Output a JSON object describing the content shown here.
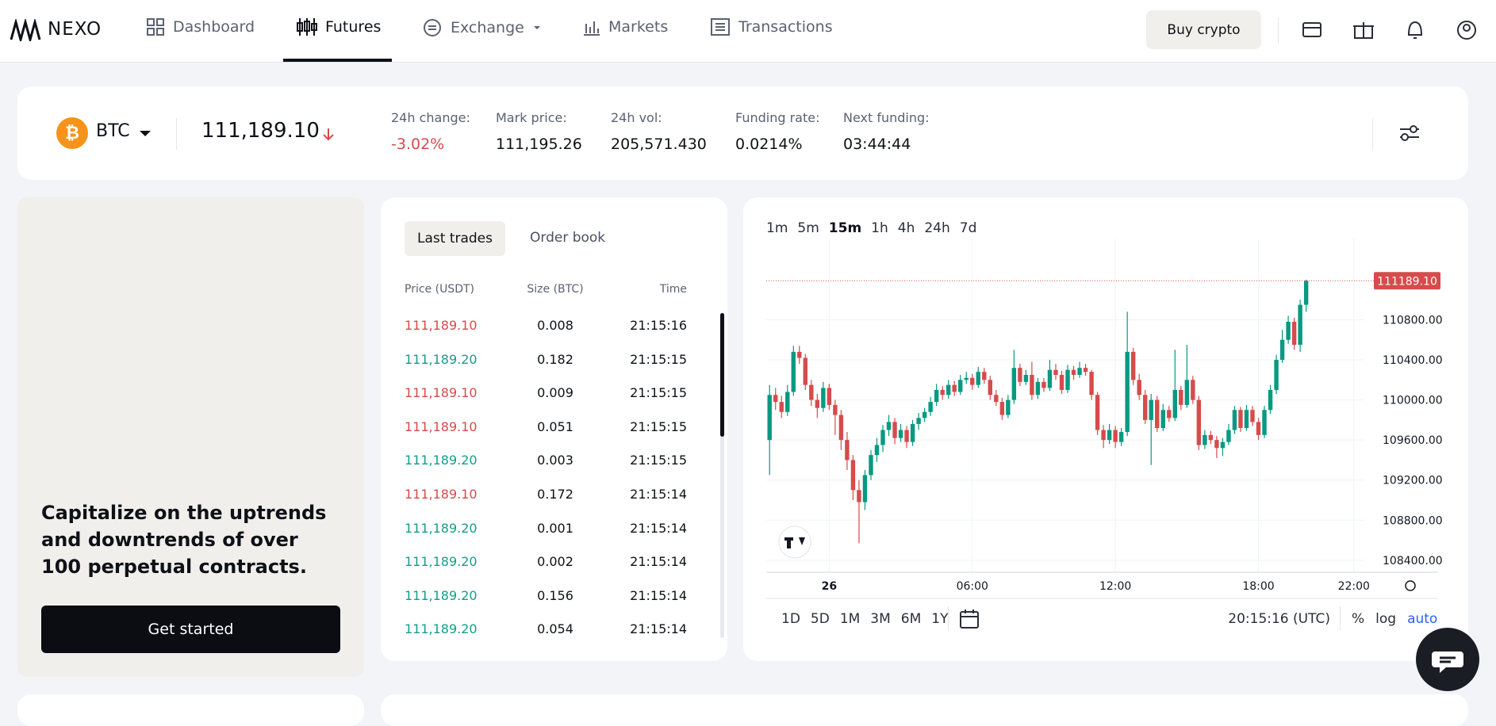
{
  "nav": {
    "brand": "NEXO",
    "items": [
      "Dashboard",
      "Futures",
      "Exchange",
      "Markets",
      "Transactions"
    ],
    "active": 1,
    "buy": "Buy crypto"
  },
  "ticker": {
    "symbol": "BTC",
    "price": "111,189.10",
    "stats": [
      {
        "label": "24h change:",
        "value": "-3.02%",
        "color": "#d64b4b"
      },
      {
        "label": "Mark price:",
        "value": "111,195.26"
      },
      {
        "label": "24h vol:",
        "value": "205,571.430"
      },
      {
        "label": "Funding rate:",
        "value": "0.0214%"
      },
      {
        "label": "Next funding:",
        "value": "03:44:44"
      }
    ]
  },
  "promo": {
    "text": "Capitalize on the uptrends and downtrends of over 100 perpetual contracts.",
    "button": "Get started"
  },
  "trades": {
    "tabs": [
      "Last trades",
      "Order book"
    ],
    "active": 0,
    "headers": [
      "Price (USDT)",
      "Size (BTC)",
      "Time"
    ],
    "rows": [
      {
        "price": "111,189.10",
        "size": "0.008",
        "time": "21:15:16",
        "color": "#d64b4b"
      },
      {
        "price": "111,189.20",
        "size": "0.182",
        "time": "21:15:15",
        "color": "#119e8c"
      },
      {
        "price": "111,189.10",
        "size": "0.009",
        "time": "21:15:15",
        "color": "#d64b4b"
      },
      {
        "price": "111,189.10",
        "size": "0.051",
        "time": "21:15:15",
        "color": "#d64b4b"
      },
      {
        "price": "111,189.20",
        "size": "0.003",
        "time": "21:15:15",
        "color": "#119e8c"
      },
      {
        "price": "111,189.10",
        "size": "0.172",
        "time": "21:15:14",
        "color": "#d64b4b"
      },
      {
        "price": "111,189.20",
        "size": "0.001",
        "time": "21:15:14",
        "color": "#119e8c"
      },
      {
        "price": "111,189.20",
        "size": "0.002",
        "time": "21:15:14",
        "color": "#119e8c"
      },
      {
        "price": "111,189.20",
        "size": "0.156",
        "time": "21:15:14",
        "color": "#119e8c"
      },
      {
        "price": "111,189.20",
        "size": "0.054",
        "time": "21:15:14",
        "color": "#119e8c"
      }
    ]
  },
  "chart_data": {
    "type": "candlestick",
    "intervals": [
      "1m",
      "5m",
      "15m",
      "1h",
      "4h",
      "24h",
      "7d"
    ],
    "active_interval": 2,
    "ranges": [
      "1D",
      "5D",
      "1M",
      "3M",
      "6M",
      "1Y"
    ],
    "clock": "20:15:16 (UTC)",
    "scale_options": [
      "%",
      "log",
      "auto"
    ],
    "up_color": "#089981",
    "down_color": "#d64b4b",
    "xlim": [
      -2.64,
      22.44
    ],
    "xticks": [
      {
        "value": 0,
        "label": "26"
      },
      {
        "value": 6,
        "label": "06:00"
      },
      {
        "value": 12,
        "label": "12:00"
      },
      {
        "value": 18,
        "label": "18:00"
      },
      {
        "value": 22,
        "label": "22:00"
      }
    ],
    "ylim": [
      108280,
      111500
    ],
    "yticks": [
      {
        "value": 108400,
        "label": "108400.00"
      },
      {
        "value": 108800,
        "label": "108800.00"
      },
      {
        "value": 109200,
        "label": "109200.00"
      },
      {
        "value": 109600,
        "label": "109600.00"
      },
      {
        "value": 110000,
        "label": "110000.00"
      },
      {
        "value": 110400,
        "label": "110400.00"
      },
      {
        "value": 110800,
        "label": "110800.00"
      }
    ],
    "last_price": {
      "value": 111189.1,
      "label": "111189.10"
    },
    "candles": [
      [
        -2.5,
        109600,
        110150,
        109250,
        110050
      ],
      [
        -2.25,
        110050,
        110120,
        109900,
        109980
      ],
      [
        -2,
        109980,
        110040,
        109820,
        109880
      ],
      [
        -1.75,
        109880,
        110150,
        109840,
        110080
      ],
      [
        -1.5,
        110080,
        110540,
        110040,
        110480
      ],
      [
        -1.25,
        110480,
        110540,
        110360,
        110420
      ],
      [
        -1,
        110420,
        110460,
        110100,
        110150
      ],
      [
        -0.75,
        110150,
        110200,
        109940,
        110000
      ],
      [
        -0.5,
        110000,
        110060,
        109820,
        109920
      ],
      [
        -0.25,
        109920,
        110180,
        109880,
        110120
      ],
      [
        0,
        110120,
        110160,
        109900,
        109950
      ],
      [
        0.25,
        109950,
        110000,
        109650,
        109850
      ],
      [
        0.5,
        109850,
        109900,
        109500,
        109600
      ],
      [
        0.75,
        109600,
        109680,
        109300,
        109400
      ],
      [
        1,
        109400,
        109450,
        109000,
        109100
      ],
      [
        1.25,
        109100,
        109200,
        108570,
        108980
      ],
      [
        1.5,
        108980,
        109300,
        108900,
        109250
      ],
      [
        1.75,
        109250,
        109500,
        109200,
        109450
      ],
      [
        2,
        109450,
        109620,
        109380,
        109550
      ],
      [
        2.25,
        109550,
        109750,
        109480,
        109700
      ],
      [
        2.5,
        109700,
        109850,
        109640,
        109780
      ],
      [
        2.75,
        109780,
        109820,
        109560,
        109620
      ],
      [
        3,
        109620,
        109760,
        109580,
        109700
      ],
      [
        3.25,
        109700,
        109740,
        109520,
        109580
      ],
      [
        3.5,
        109580,
        109800,
        109540,
        109760
      ],
      [
        3.75,
        109760,
        109870,
        109700,
        109820
      ],
      [
        4,
        109820,
        109920,
        109780,
        109880
      ],
      [
        4.25,
        109880,
        110030,
        109840,
        109980
      ],
      [
        4.5,
        109980,
        110160,
        109940,
        110100
      ],
      [
        4.75,
        110100,
        110140,
        110000,
        110050
      ],
      [
        5,
        110050,
        110200,
        110010,
        110150
      ],
      [
        5.25,
        110150,
        110190,
        110040,
        110080
      ],
      [
        5.5,
        110080,
        110250,
        110050,
        110200
      ],
      [
        5.75,
        110200,
        110280,
        110160,
        110220
      ],
      [
        6,
        110220,
        110260,
        110100,
        110150
      ],
      [
        6.25,
        110150,
        110330,
        110120,
        110280
      ],
      [
        6.5,
        110280,
        110320,
        110160,
        110200
      ],
      [
        6.75,
        110200,
        110240,
        110000,
        110050
      ],
      [
        7,
        110050,
        110100,
        109940,
        109980
      ],
      [
        7.25,
        109980,
        110020,
        109800,
        109850
      ],
      [
        7.5,
        109850,
        110050,
        109820,
        110000
      ],
      [
        7.75,
        110000,
        110500,
        109960,
        110320
      ],
      [
        8,
        110320,
        110360,
        110140,
        110180
      ],
      [
        8.25,
        110180,
        110300,
        110150,
        110250
      ],
      [
        8.5,
        110250,
        110380,
        110000,
        110050
      ],
      [
        8.75,
        110050,
        110220,
        110010,
        110180
      ],
      [
        9,
        110180,
        110220,
        110080,
        110120
      ],
      [
        9.25,
        110120,
        110400,
        110090,
        110300
      ],
      [
        9.5,
        110300,
        110360,
        110200,
        110250
      ],
      [
        9.75,
        110250,
        110290,
        110060,
        110100
      ],
      [
        10,
        110100,
        110350,
        110070,
        110300
      ],
      [
        10.25,
        110300,
        110340,
        110200,
        110250
      ],
      [
        10.5,
        110250,
        110380,
        110220,
        110320
      ],
      [
        10.75,
        110320,
        110360,
        110240,
        110280
      ],
      [
        11,
        110280,
        110300,
        110000,
        110050
      ],
      [
        11.25,
        110050,
        110080,
        109650,
        109700
      ],
      [
        11.5,
        109700,
        109750,
        109520,
        109600
      ],
      [
        11.75,
        109600,
        109760,
        109560,
        109700
      ],
      [
        12,
        109700,
        109740,
        109520,
        109580
      ],
      [
        12.25,
        109580,
        109720,
        109540,
        109680
      ],
      [
        12.5,
        109680,
        110880,
        109640,
        110480
      ],
      [
        12.75,
        110480,
        110520,
        110150,
        110200
      ],
      [
        13,
        110200,
        110260,
        110000,
        110050
      ],
      [
        13.25,
        110050,
        110100,
        109760,
        109800
      ],
      [
        13.5,
        109800,
        110060,
        109350,
        110000
      ],
      [
        13.75,
        110000,
        110040,
        109680,
        109720
      ],
      [
        14,
        109720,
        109960,
        109690,
        109900
      ],
      [
        14.25,
        109900,
        109940,
        109780,
        109820
      ],
      [
        14.5,
        109820,
        110500,
        109790,
        110100
      ],
      [
        14.75,
        110100,
        110140,
        109900,
        109950
      ],
      [
        15,
        109950,
        110550,
        109920,
        110200
      ],
      [
        15.25,
        110200,
        110240,
        109960,
        110000
      ],
      [
        15.5,
        110000,
        110040,
        109500,
        109550
      ],
      [
        15.75,
        109550,
        109700,
        109510,
        109650
      ],
      [
        16,
        109650,
        109690,
        109560,
        109600
      ],
      [
        16.25,
        109600,
        109640,
        109420,
        109520
      ],
      [
        16.5,
        109520,
        109620,
        109440,
        109580
      ],
      [
        16.75,
        109580,
        109760,
        109550,
        109700
      ],
      [
        17,
        109700,
        109940,
        109660,
        109900
      ],
      [
        17.25,
        109900,
        109930,
        109680,
        109720
      ],
      [
        17.5,
        109720,
        109950,
        109690,
        109900
      ],
      [
        17.75,
        109900,
        109940,
        109740,
        109780
      ],
      [
        18,
        109780,
        109820,
        109600,
        109650
      ],
      [
        18.25,
        109650,
        109940,
        109620,
        109900
      ],
      [
        18.5,
        109900,
        110150,
        109860,
        110100
      ],
      [
        18.75,
        110100,
        110450,
        110060,
        110400
      ],
      [
        19,
        110400,
        110700,
        110370,
        110600
      ],
      [
        19.25,
        110600,
        110840,
        110560,
        110780
      ],
      [
        19.5,
        110780,
        110820,
        110500,
        110550
      ],
      [
        19.75,
        110550,
        111000,
        110480,
        110950
      ],
      [
        20,
        110950,
        111200,
        110880,
        111189.1
      ]
    ]
  }
}
